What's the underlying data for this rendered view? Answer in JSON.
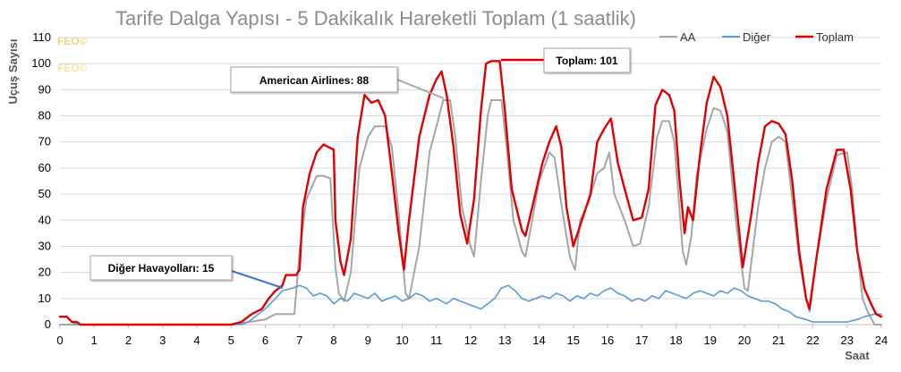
{
  "chart_data": {
    "type": "line",
    "title": "Tarife Dalga Yapısı - 5 Dakikalık Hareketli Toplam (1 saatlik)",
    "xlabel": "Saat",
    "ylabel": "Uçuş Sayısı",
    "xlim": [
      0,
      24
    ],
    "ylim": [
      0,
      110
    ],
    "x_ticks": [
      "0",
      "1",
      "2",
      "3",
      "4",
      "5",
      "6",
      "7",
      "8",
      "9",
      "10",
      "11",
      "12",
      "13",
      "14",
      "15",
      "16",
      "17",
      "18",
      "19",
      "20",
      "21",
      "22",
      "23",
      "24"
    ],
    "y_ticks": [
      "0",
      "10",
      "20",
      "30",
      "40",
      "50",
      "60",
      "70",
      "80",
      "90",
      "100",
      "110"
    ],
    "grid": "horizontal",
    "legend_position": "top-right",
    "watermark": [
      "FEO©",
      "FEO©"
    ],
    "series": [
      {
        "name": "AA",
        "color": "#a6a6a6",
        "points": [
          [
            0,
            0
          ],
          [
            5.0,
            0
          ],
          [
            5.5,
            1
          ],
          [
            6.0,
            2
          ],
          [
            6.3,
            4
          ],
          [
            6.6,
            4
          ],
          [
            6.85,
            4
          ],
          [
            7.0,
            28
          ],
          [
            7.2,
            48
          ],
          [
            7.5,
            57
          ],
          [
            7.7,
            57
          ],
          [
            7.9,
            56
          ],
          [
            8.05,
            22
          ],
          [
            8.15,
            12
          ],
          [
            8.3,
            9
          ],
          [
            8.5,
            20
          ],
          [
            8.75,
            60
          ],
          [
            9.0,
            72
          ],
          [
            9.2,
            76
          ],
          [
            9.5,
            76
          ],
          [
            9.7,
            68
          ],
          [
            9.9,
            42
          ],
          [
            10.1,
            12
          ],
          [
            10.2,
            10
          ],
          [
            10.5,
            30
          ],
          [
            10.8,
            66
          ],
          [
            11.0,
            76
          ],
          [
            11.2,
            86
          ],
          [
            11.4,
            86
          ],
          [
            11.55,
            72
          ],
          [
            11.75,
            45
          ],
          [
            12.0,
            30
          ],
          [
            12.1,
            26
          ],
          [
            12.3,
            55
          ],
          [
            12.5,
            80
          ],
          [
            12.6,
            86
          ],
          [
            12.9,
            86
          ],
          [
            13.05,
            68
          ],
          [
            13.25,
            40
          ],
          [
            13.5,
            28
          ],
          [
            13.6,
            26
          ],
          [
            13.8,
            40
          ],
          [
            14.0,
            55
          ],
          [
            14.2,
            62
          ],
          [
            14.3,
            66
          ],
          [
            14.45,
            64
          ],
          [
            14.7,
            42
          ],
          [
            14.9,
            26
          ],
          [
            15.05,
            21
          ],
          [
            15.2,
            40
          ],
          [
            15.45,
            47
          ],
          [
            15.7,
            58
          ],
          [
            15.9,
            60
          ],
          [
            16.05,
            66
          ],
          [
            16.2,
            50
          ],
          [
            16.5,
            40
          ],
          [
            16.75,
            30
          ],
          [
            16.95,
            31
          ],
          [
            17.2,
            45
          ],
          [
            17.45,
            72
          ],
          [
            17.6,
            78
          ],
          [
            17.8,
            78
          ],
          [
            17.95,
            70
          ],
          [
            18.1,
            45
          ],
          [
            18.2,
            28
          ],
          [
            18.3,
            23
          ],
          [
            18.45,
            34
          ],
          [
            18.6,
            57
          ],
          [
            18.9,
            75
          ],
          [
            19.1,
            83
          ],
          [
            19.3,
            82
          ],
          [
            19.5,
            74
          ],
          [
            19.75,
            40
          ],
          [
            20.0,
            14
          ],
          [
            20.1,
            13
          ],
          [
            20.4,
            45
          ],
          [
            20.6,
            60
          ],
          [
            20.8,
            70
          ],
          [
            21.0,
            72
          ],
          [
            21.2,
            70
          ],
          [
            21.4,
            48
          ],
          [
            21.6,
            25
          ],
          [
            21.8,
            10
          ],
          [
            21.9,
            5
          ],
          [
            22.1,
            25
          ],
          [
            22.4,
            48
          ],
          [
            22.7,
            65
          ],
          [
            23.0,
            66
          ],
          [
            23.15,
            52
          ],
          [
            23.3,
            28
          ],
          [
            23.45,
            10
          ],
          [
            23.6,
            5
          ],
          [
            23.8,
            0
          ],
          [
            24,
            0
          ]
        ]
      },
      {
        "name": "Diğer",
        "color": "#5b9bd5",
        "points": [
          [
            0,
            3
          ],
          [
            0.2,
            3
          ],
          [
            0.35,
            1
          ],
          [
            0.5,
            0
          ],
          [
            5.3,
            0
          ],
          [
            5.5,
            1
          ],
          [
            5.8,
            4
          ],
          [
            6.0,
            6
          ],
          [
            6.3,
            10
          ],
          [
            6.5,
            13
          ],
          [
            6.8,
            14
          ],
          [
            7.0,
            15
          ],
          [
            7.2,
            14
          ],
          [
            7.4,
            11
          ],
          [
            7.6,
            12
          ],
          [
            7.8,
            11
          ],
          [
            8.0,
            8
          ],
          [
            8.2,
            10
          ],
          [
            8.4,
            9
          ],
          [
            8.6,
            12
          ],
          [
            8.8,
            11
          ],
          [
            9.0,
            10
          ],
          [
            9.2,
            12
          ],
          [
            9.4,
            9
          ],
          [
            9.6,
            10
          ],
          [
            9.8,
            11
          ],
          [
            10.0,
            9
          ],
          [
            10.2,
            10
          ],
          [
            10.4,
            12
          ],
          [
            10.6,
            11
          ],
          [
            10.8,
            9
          ],
          [
            11.0,
            10
          ],
          [
            11.3,
            8
          ],
          [
            11.5,
            10
          ],
          [
            11.7,
            9
          ],
          [
            11.9,
            8
          ],
          [
            12.1,
            7
          ],
          [
            12.3,
            6
          ],
          [
            12.5,
            8
          ],
          [
            12.7,
            10
          ],
          [
            12.9,
            14
          ],
          [
            13.1,
            15
          ],
          [
            13.3,
            13
          ],
          [
            13.5,
            10
          ],
          [
            13.7,
            9
          ],
          [
            13.9,
            10
          ],
          [
            14.1,
            11
          ],
          [
            14.3,
            10
          ],
          [
            14.5,
            12
          ],
          [
            14.7,
            11
          ],
          [
            14.9,
            9
          ],
          [
            15.1,
            11
          ],
          [
            15.3,
            10
          ],
          [
            15.5,
            12
          ],
          [
            15.7,
            11
          ],
          [
            15.9,
            13
          ],
          [
            16.1,
            14
          ],
          [
            16.3,
            12
          ],
          [
            16.5,
            11
          ],
          [
            16.7,
            9
          ],
          [
            16.9,
            10
          ],
          [
            17.1,
            9
          ],
          [
            17.3,
            11
          ],
          [
            17.5,
            10
          ],
          [
            17.7,
            13
          ],
          [
            17.9,
            12
          ],
          [
            18.1,
            11
          ],
          [
            18.3,
            10
          ],
          [
            18.5,
            12
          ],
          [
            18.7,
            13
          ],
          [
            18.9,
            12
          ],
          [
            19.1,
            11
          ],
          [
            19.3,
            13
          ],
          [
            19.5,
            12
          ],
          [
            19.7,
            14
          ],
          [
            19.9,
            13
          ],
          [
            20.1,
            11
          ],
          [
            20.3,
            10
          ],
          [
            20.5,
            9
          ],
          [
            20.7,
            9
          ],
          [
            20.9,
            8
          ],
          [
            21.1,
            6
          ],
          [
            21.3,
            5
          ],
          [
            21.5,
            3
          ],
          [
            21.8,
            2
          ],
          [
            22.0,
            1
          ],
          [
            23.0,
            1
          ],
          [
            23.3,
            2
          ],
          [
            23.5,
            3
          ],
          [
            23.8,
            4
          ],
          [
            24,
            4
          ]
        ]
      },
      {
        "name": "Toplam",
        "color": "#e00000",
        "points": [
          [
            0,
            3
          ],
          [
            0.2,
            3
          ],
          [
            0.35,
            1
          ],
          [
            0.5,
            1
          ],
          [
            0.6,
            0
          ],
          [
            5.0,
            0
          ],
          [
            5.3,
            1
          ],
          [
            5.6,
            4
          ],
          [
            5.9,
            6
          ],
          [
            6.1,
            10
          ],
          [
            6.3,
            13
          ],
          [
            6.5,
            15
          ],
          [
            6.6,
            19
          ],
          [
            6.9,
            19
          ],
          [
            7.0,
            21
          ],
          [
            7.1,
            45
          ],
          [
            7.3,
            58
          ],
          [
            7.5,
            66
          ],
          [
            7.7,
            69
          ],
          [
            7.85,
            68
          ],
          [
            8.0,
            67
          ],
          [
            8.05,
            40
          ],
          [
            8.2,
            24
          ],
          [
            8.3,
            19
          ],
          [
            8.5,
            33
          ],
          [
            8.7,
            72
          ],
          [
            8.9,
            88
          ],
          [
            9.1,
            85
          ],
          [
            9.3,
            86
          ],
          [
            9.5,
            80
          ],
          [
            9.7,
            58
          ],
          [
            9.9,
            35
          ],
          [
            10.05,
            21
          ],
          [
            10.2,
            40
          ],
          [
            10.5,
            72
          ],
          [
            10.8,
            88
          ],
          [
            11.0,
            94
          ],
          [
            11.15,
            97
          ],
          [
            11.3,
            88
          ],
          [
            11.5,
            68
          ],
          [
            11.7,
            42
          ],
          [
            11.9,
            31
          ],
          [
            12.1,
            48
          ],
          [
            12.3,
            82
          ],
          [
            12.45,
            100
          ],
          [
            12.6,
            101
          ],
          [
            12.85,
            101
          ],
          [
            13.0,
            82
          ],
          [
            13.2,
            52
          ],
          [
            13.5,
            36
          ],
          [
            13.6,
            34
          ],
          [
            13.8,
            45
          ],
          [
            14.1,
            62
          ],
          [
            14.3,
            70
          ],
          [
            14.5,
            76
          ],
          [
            14.65,
            68
          ],
          [
            14.8,
            45
          ],
          [
            15.0,
            30
          ],
          [
            15.2,
            38
          ],
          [
            15.5,
            50
          ],
          [
            15.7,
            70
          ],
          [
            15.9,
            75
          ],
          [
            16.1,
            79
          ],
          [
            16.3,
            62
          ],
          [
            16.5,
            52
          ],
          [
            16.75,
            40
          ],
          [
            17.0,
            41
          ],
          [
            17.2,
            52
          ],
          [
            17.4,
            84
          ],
          [
            17.6,
            90
          ],
          [
            17.8,
            88
          ],
          [
            17.95,
            82
          ],
          [
            18.1,
            56
          ],
          [
            18.25,
            35
          ],
          [
            18.35,
            45
          ],
          [
            18.5,
            40
          ],
          [
            18.7,
            65
          ],
          [
            18.9,
            85
          ],
          [
            19.1,
            95
          ],
          [
            19.3,
            91
          ],
          [
            19.5,
            80
          ],
          [
            19.7,
            55
          ],
          [
            19.95,
            22
          ],
          [
            20.2,
            42
          ],
          [
            20.4,
            62
          ],
          [
            20.6,
            76
          ],
          [
            20.8,
            78
          ],
          [
            21.0,
            77
          ],
          [
            21.2,
            73
          ],
          [
            21.4,
            55
          ],
          [
            21.6,
            28
          ],
          [
            21.8,
            10
          ],
          [
            21.9,
            6
          ],
          [
            22.1,
            25
          ],
          [
            22.4,
            52
          ],
          [
            22.7,
            67
          ],
          [
            22.9,
            67
          ],
          [
            23.1,
            52
          ],
          [
            23.3,
            28
          ],
          [
            23.5,
            14
          ],
          [
            23.7,
            8
          ],
          [
            23.85,
            4
          ],
          [
            24,
            3
          ]
        ]
      }
    ],
    "annotations": [
      {
        "text": "American Airlines: 88",
        "x": 11.25,
        "y": 86,
        "color": "#a6a6a6"
      },
      {
        "text": "Toplam: 101",
        "x": 12.7,
        "y": 101,
        "color": "#e00000"
      },
      {
        "text": "Diğer Havayolları: 15",
        "x": 6.8,
        "y": 14,
        "color": "#4472c4"
      }
    ]
  }
}
